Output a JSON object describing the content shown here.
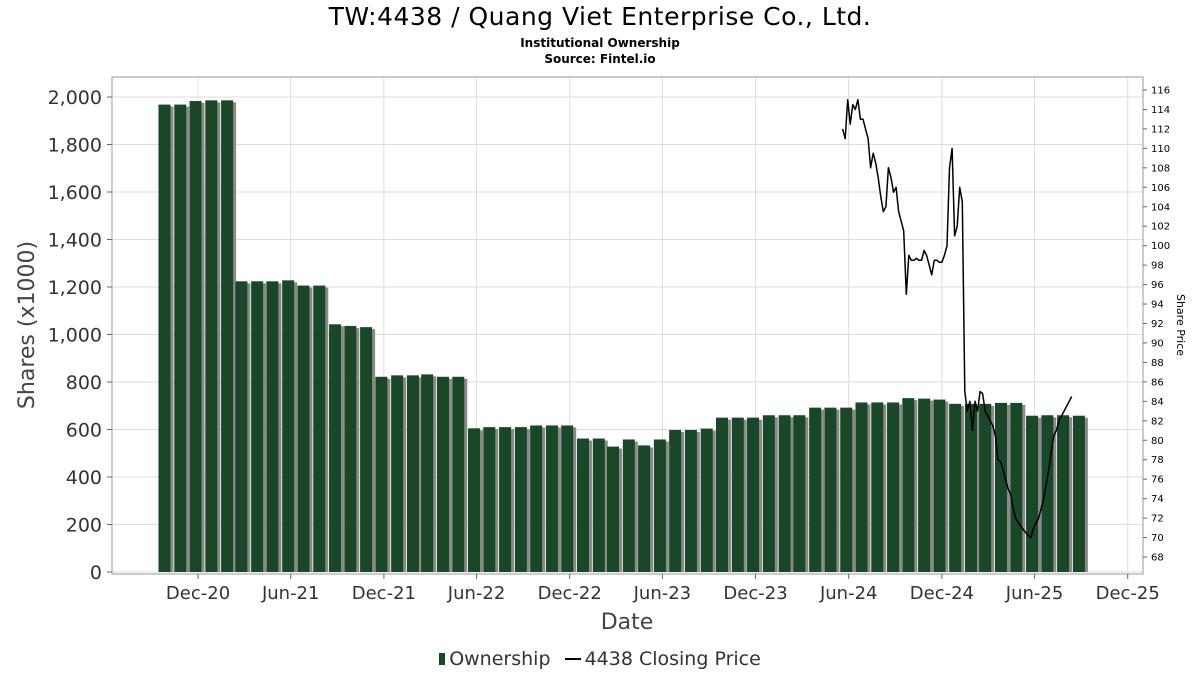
{
  "header": {
    "title": "TW:4438 / Quang Viet Enterprise Co., Ltd.",
    "subtitle": "Institutional Ownership",
    "source": "Source: Fintel.io"
  },
  "legend": {
    "ownership_label": "Ownership",
    "price_label": "4438 Closing Price"
  },
  "colors": {
    "bar_fill": "#1a4727",
    "bar_shadow": "#8a8a8a",
    "price_line": "#000000",
    "grid": "#dddddd"
  },
  "chart_data": {
    "type": "bar",
    "xlabel": "Date",
    "ylabel": "Shares (x1000)",
    "y2label": "Share Price",
    "ylim": [
      0,
      2000
    ],
    "y2lim": [
      67,
      117
    ],
    "yticks": [
      0,
      200,
      400,
      600,
      800,
      1000,
      1200,
      1400,
      1600,
      1800,
      2000
    ],
    "ytick_labels": [
      "0",
      "200",
      "400",
      "600",
      "800",
      "1,000",
      "1,200",
      "1,400",
      "1,600",
      "1,800",
      "2,000"
    ],
    "y2ticks": [
      68,
      70,
      72,
      74,
      76,
      78,
      80,
      82,
      84,
      86,
      88,
      90,
      92,
      94,
      96,
      98,
      100,
      102,
      104,
      106,
      108,
      110,
      112,
      114,
      116
    ],
    "x_ticks": [
      "Dec-20",
      "Jun-21",
      "Dec-21",
      "Jun-22",
      "Dec-22",
      "Jun-23",
      "Dec-23",
      "Jun-24",
      "Dec-24",
      "Jun-25",
      "Dec-25"
    ],
    "grid": true,
    "legend_position": "bottom",
    "x_domain": [
      "2020-06-15",
      "2025-12-31"
    ],
    "x_tick_dates": [
      "2020-12-01",
      "2021-06-01",
      "2021-12-01",
      "2022-06-01",
      "2022-12-01",
      "2023-06-01",
      "2023-12-01",
      "2024-06-01",
      "2024-12-01",
      "2025-06-01",
      "2025-12-01"
    ],
    "series": [
      {
        "name": "Ownership",
        "kind": "bar",
        "dates": [
          "2020-09-30",
          "2020-10-31",
          "2020-11-30",
          "2020-12-31",
          "2021-01-31",
          "2021-02-28",
          "2021-03-31",
          "2021-04-30",
          "2021-05-31",
          "2021-06-30",
          "2021-07-31",
          "2021-08-31",
          "2021-09-30",
          "2021-10-31",
          "2021-11-30",
          "2021-12-31",
          "2022-01-31",
          "2022-02-28",
          "2022-03-31",
          "2022-04-30",
          "2022-05-31",
          "2022-06-30",
          "2022-07-31",
          "2022-08-31",
          "2022-09-30",
          "2022-10-31",
          "2022-11-30",
          "2022-12-31",
          "2023-01-31",
          "2023-02-28",
          "2023-03-31",
          "2023-04-30",
          "2023-05-31",
          "2023-06-30",
          "2023-07-31",
          "2023-08-31",
          "2023-09-30",
          "2023-10-31",
          "2023-11-30",
          "2023-12-31",
          "2024-01-31",
          "2024-02-29",
          "2024-03-31",
          "2024-04-30",
          "2024-05-31",
          "2024-06-30",
          "2024-07-31",
          "2024-08-31",
          "2024-09-30",
          "2024-10-31",
          "2024-11-30",
          "2024-12-31",
          "2025-01-31",
          "2025-02-28",
          "2025-03-31",
          "2025-04-30",
          "2025-05-31",
          "2025-06-30",
          "2025-07-31",
          "2025-08-31"
        ],
        "values": [
          1968,
          1968,
          1983,
          1986,
          1986,
          1224,
          1224,
          1224,
          1228,
          1206,
          1206,
          1043,
          1036,
          1031,
          822,
          828,
          828,
          832,
          822,
          822,
          605,
          610,
          610,
          610,
          617,
          617,
          617,
          562,
          562,
          528,
          558,
          533,
          558,
          598,
          598,
          604,
          650,
          650,
          650,
          660,
          660,
          660,
          692,
          692,
          692,
          714,
          714,
          714,
          732,
          730,
          726,
          708,
          708,
          708,
          712,
          712,
          658,
          660,
          660,
          658
        ]
      },
      {
        "name": "4438 Closing Price",
        "kind": "line",
        "dates": [
          "2024-05-20",
          "2024-05-25",
          "2024-05-30",
          "2024-06-04",
          "2024-06-09",
          "2024-06-14",
          "2024-06-19",
          "2024-06-24",
          "2024-06-29",
          "2024-07-04",
          "2024-07-09",
          "2024-07-14",
          "2024-07-19",
          "2024-07-24",
          "2024-07-29",
          "2024-08-03",
          "2024-08-08",
          "2024-08-13",
          "2024-08-18",
          "2024-08-23",
          "2024-08-28",
          "2024-09-02",
          "2024-09-07",
          "2024-09-12",
          "2024-09-17",
          "2024-09-22",
          "2024-09-27",
          "2024-10-02",
          "2024-10-07",
          "2024-10-12",
          "2024-10-17",
          "2024-10-22",
          "2024-10-27",
          "2024-11-01",
          "2024-11-06",
          "2024-11-11",
          "2024-11-16",
          "2024-11-21",
          "2024-11-26",
          "2024-12-01",
          "2024-12-06",
          "2024-12-11",
          "2024-12-16",
          "2024-12-21",
          "2024-12-26",
          "2024-12-31",
          "2025-01-05",
          "2025-01-10",
          "2025-01-15",
          "2025-01-20",
          "2025-01-25",
          "2025-01-30",
          "2025-02-04",
          "2025-02-09",
          "2025-02-14",
          "2025-02-19",
          "2025-02-24",
          "2025-03-01",
          "2025-03-06",
          "2025-03-11",
          "2025-03-16",
          "2025-03-21",
          "2025-03-26",
          "2025-03-31",
          "2025-04-05",
          "2025-04-10",
          "2025-04-15",
          "2025-04-20",
          "2025-04-25",
          "2025-04-30",
          "2025-05-05",
          "2025-05-10",
          "2025-05-15",
          "2025-05-20",
          "2025-05-25",
          "2025-05-30",
          "2025-06-04",
          "2025-06-09",
          "2025-06-14",
          "2025-06-19",
          "2025-06-24",
          "2025-06-29",
          "2025-07-04",
          "2025-07-09",
          "2025-07-14",
          "2025-07-19",
          "2025-07-24",
          "2025-07-29",
          "2025-08-03",
          "2025-08-08",
          "2025-08-13"
        ],
        "values": [
          112,
          111,
          115,
          112.5,
          114.5,
          114,
          115,
          113,
          113,
          112,
          111,
          108,
          109.5,
          108.5,
          107,
          105,
          103.5,
          104,
          108,
          107,
          105.5,
          106,
          103.5,
          102.5,
          101.5,
          95,
          99,
          98.5,
          98.5,
          98.7,
          98.5,
          98.5,
          99.5,
          99,
          98,
          97,
          98.5,
          98.5,
          98.3,
          98.3,
          99,
          100,
          108,
          110,
          101,
          102,
          106,
          104.5,
          85,
          83,
          84,
          81,
          84,
          83,
          85,
          84.8,
          83,
          82.5,
          82,
          81.5,
          80.5,
          78,
          77.8,
          77,
          76,
          75,
          74.5,
          73,
          72,
          71.5,
          71.2,
          70.8,
          70.5,
          70.2,
          70,
          71,
          71.5,
          72,
          73,
          74,
          75.5,
          77,
          79,
          80.5,
          81,
          82,
          82.5,
          83,
          83.5,
          84,
          84.5
        ]
      }
    ]
  }
}
